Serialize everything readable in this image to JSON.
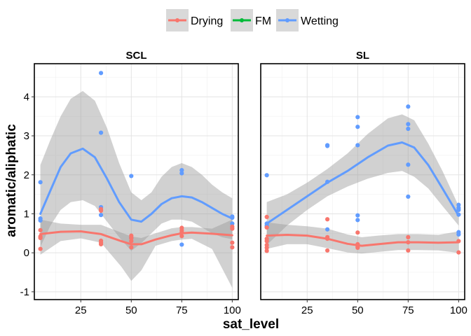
{
  "chart_data": {
    "type": "scatter",
    "legend": {
      "position": "top",
      "entries": [
        {
          "name": "Drying",
          "color": "#F8766D"
        },
        {
          "name": "FM",
          "color": "#00BA38"
        },
        {
          "name": "Wetting",
          "color": "#619CFF"
        }
      ]
    },
    "xlabel": "sat_level",
    "ylabel": "aromatic/aliphatic",
    "xlim": [
      2,
      103
    ],
    "ylim": [
      -1.2,
      4.85
    ],
    "yticks": [
      -1,
      0,
      1,
      2,
      3,
      4
    ],
    "grid": true,
    "panels": [
      {
        "title": "SCL",
        "xticks": [
          25,
          50,
          75,
          100
        ],
        "series": [
          {
            "name": "Wetting",
            "points": [
              [
                5,
                1.81
              ],
              [
                5,
                0.88
              ],
              [
                5,
                0.83
              ],
              [
                35,
                4.61
              ],
              [
                35,
                3.08
              ],
              [
                35,
                1.17
              ],
              [
                35,
                0.97
              ],
              [
                50,
                1.97
              ],
              [
                50,
                0.38
              ],
              [
                75,
                2.12
              ],
              [
                75,
                2.04
              ],
              [
                75,
                0.21
              ],
              [
                100,
                0.93
              ],
              [
                100,
                0.9
              ],
              [
                100,
                0.75
              ]
            ],
            "smooth": [
              [
                5,
                1.0
              ],
              [
                10,
                1.6
              ],
              [
                15,
                2.2
              ],
              [
                20,
                2.55
              ],
              [
                26,
                2.67
              ],
              [
                32,
                2.45
              ],
              [
                38,
                1.9
              ],
              [
                44,
                1.3
              ],
              [
                50,
                0.85
              ],
              [
                55,
                0.8
              ],
              [
                60,
                1.0
              ],
              [
                65,
                1.25
              ],
              [
                70,
                1.4
              ],
              [
                75,
                1.45
              ],
              [
                80,
                1.42
              ],
              [
                85,
                1.3
              ],
              [
                90,
                1.15
              ],
              [
                95,
                1.0
              ],
              [
                100,
                0.88
              ]
            ],
            "band_upper": [
              [
                5,
                2.25
              ],
              [
                10,
                2.9
              ],
              [
                15,
                3.5
              ],
              [
                20,
                3.95
              ],
              [
                26,
                4.15
              ],
              [
                32,
                3.9
              ],
              [
                38,
                3.2
              ],
              [
                44,
                2.3
              ],
              [
                50,
                1.55
              ],
              [
                55,
                1.35
              ],
              [
                60,
                1.55
              ],
              [
                65,
                1.95
              ],
              [
                70,
                2.2
              ],
              [
                75,
                2.3
              ],
              [
                80,
                2.2
              ],
              [
                85,
                2.0
              ],
              [
                90,
                1.75
              ],
              [
                95,
                1.55
              ],
              [
                100,
                1.4
              ]
            ],
            "band_lower": [
              [
                5,
                0.15
              ],
              [
                10,
                0.7
              ],
              [
                15,
                1.1
              ],
              [
                20,
                1.3
              ],
              [
                26,
                1.35
              ],
              [
                32,
                1.2
              ],
              [
                38,
                0.8
              ],
              [
                44,
                0.4
              ],
              [
                50,
                0.05
              ],
              [
                55,
                0.25
              ],
              [
                60,
                0.5
              ],
              [
                65,
                0.75
              ],
              [
                70,
                0.85
              ],
              [
                75,
                0.85
              ],
              [
                80,
                0.8
              ],
              [
                85,
                0.65
              ],
              [
                90,
                0.5
              ],
              [
                95,
                0.4
              ],
              [
                100,
                0.35
              ]
            ]
          },
          {
            "name": "Drying",
            "points": [
              [
                5,
                0.58
              ],
              [
                5,
                0.42
              ],
              [
                5,
                0.38
              ],
              [
                5,
                0.1
              ],
              [
                35,
                1.12
              ],
              [
                35,
                1.08
              ],
              [
                35,
                0.31
              ],
              [
                35,
                0.26
              ],
              [
                35,
                0.22
              ],
              [
                50,
                0.44
              ],
              [
                50,
                0.4
              ],
              [
                50,
                0.37
              ],
              [
                50,
                0.3
              ],
              [
                50,
                0.14
              ],
              [
                75,
                0.64
              ],
              [
                75,
                0.58
              ],
              [
                75,
                0.53
              ],
              [
                75,
                0.43
              ],
              [
                100,
                0.67
              ],
              [
                100,
                0.62
              ],
              [
                100,
                0.26
              ],
              [
                100,
                0.14
              ]
            ],
            "smooth": [
              [
                5,
                0.48
              ],
              [
                15,
                0.54
              ],
              [
                25,
                0.55
              ],
              [
                35,
                0.48
              ],
              [
                45,
                0.3
              ],
              [
                50,
                0.22
              ],
              [
                55,
                0.22
              ],
              [
                62,
                0.34
              ],
              [
                70,
                0.45
              ],
              [
                75,
                0.5
              ],
              [
                80,
                0.52
              ],
              [
                90,
                0.49
              ],
              [
                100,
                0.45
              ]
            ],
            "band_upper": [
              [
                5,
                0.85
              ],
              [
                15,
                0.75
              ],
              [
                25,
                0.72
              ],
              [
                35,
                0.72
              ],
              [
                45,
                0.52
              ],
              [
                50,
                0.42
              ],
              [
                55,
                0.38
              ],
              [
                62,
                0.5
              ],
              [
                70,
                0.63
              ],
              [
                75,
                0.66
              ],
              [
                80,
                0.66
              ],
              [
                90,
                0.62
              ],
              [
                100,
                0.85
              ]
            ],
            "band_lower": [
              [
                5,
                -0.05
              ],
              [
                15,
                0.3
              ],
              [
                25,
                0.37
              ],
              [
                35,
                0.26
              ],
              [
                45,
                -0.35
              ],
              [
                50,
                -0.72
              ],
              [
                55,
                -0.45
              ],
              [
                62,
                0.18
              ],
              [
                70,
                0.3
              ],
              [
                75,
                0.34
              ],
              [
                80,
                0.36
              ],
              [
                90,
                0.1
              ],
              [
                100,
                -0.9
              ]
            ]
          }
        ]
      },
      {
        "title": "SL",
        "xticks": [
          25,
          50,
          75,
          100
        ],
        "series": [
          {
            "name": "Wetting",
            "points": [
              [
                5,
                1.99
              ],
              [
                5,
                0.75
              ],
              [
                5,
                0.7
              ],
              [
                5,
                0.67
              ],
              [
                35,
                2.76
              ],
              [
                35,
                2.74
              ],
              [
                35,
                1.82
              ],
              [
                35,
                0.6
              ],
              [
                50,
                3.48
              ],
              [
                50,
                3.23
              ],
              [
                50,
                2.76
              ],
              [
                50,
                0.96
              ],
              [
                50,
                0.84
              ],
              [
                75,
                3.75
              ],
              [
                75,
                3.3
              ],
              [
                75,
                3.18
              ],
              [
                75,
                2.26
              ],
              [
                75,
                1.44
              ],
              [
                100,
                1.23
              ],
              [
                100,
                1.15
              ],
              [
                100,
                1.1
              ],
              [
                100,
                0.98
              ],
              [
                100,
                0.53
              ],
              [
                100,
                0.47
              ]
            ],
            "smooth": [
              [
                5,
                0.75
              ],
              [
                15,
                1.1
              ],
              [
                25,
                1.45
              ],
              [
                35,
                1.8
              ],
              [
                45,
                2.1
              ],
              [
                55,
                2.45
              ],
              [
                65,
                2.75
              ],
              [
                72,
                2.83
              ],
              [
                78,
                2.7
              ],
              [
                85,
                2.25
              ],
              [
                92,
                1.65
              ],
              [
                100,
                0.95
              ]
            ],
            "band_upper": [
              [
                5,
                1.3
              ],
              [
                15,
                1.5
              ],
              [
                25,
                1.8
              ],
              [
                35,
                2.15
              ],
              [
                45,
                2.55
              ],
              [
                55,
                3.05
              ],
              [
                65,
                3.45
              ],
              [
                72,
                3.55
              ],
              [
                78,
                3.4
              ],
              [
                85,
                2.8
              ],
              [
                92,
                2.1
              ],
              [
                100,
                1.2
              ]
            ],
            "band_lower": [
              [
                5,
                0.2
              ],
              [
                15,
                0.7
              ],
              [
                25,
                1.1
              ],
              [
                35,
                1.45
              ],
              [
                45,
                1.7
              ],
              [
                55,
                1.9
              ],
              [
                65,
                2.05
              ],
              [
                72,
                2.1
              ],
              [
                78,
                1.95
              ],
              [
                85,
                1.65
              ],
              [
                92,
                1.2
              ],
              [
                100,
                0.7
              ]
            ]
          },
          {
            "name": "Drying",
            "points": [
              [
                5,
                0.92
              ],
              [
                5,
                0.65
              ],
              [
                5,
                0.36
              ],
              [
                5,
                0.3
              ],
              [
                5,
                0.2
              ],
              [
                5,
                0.13
              ],
              [
                5,
                0.05
              ],
              [
                35,
                0.86
              ],
              [
                35,
                0.4
              ],
              [
                35,
                0.36
              ],
              [
                35,
                0.06
              ],
              [
                50,
                0.52
              ],
              [
                50,
                0.22
              ],
              [
                50,
                0.16
              ],
              [
                50,
                0.13
              ],
              [
                75,
                0.4
              ],
              [
                75,
                0.27
              ],
              [
                75,
                0.06
              ],
              [
                100,
                0.3
              ],
              [
                100,
                0.01
              ]
            ],
            "smooth": [
              [
                5,
                0.44
              ],
              [
                15,
                0.46
              ],
              [
                25,
                0.44
              ],
              [
                35,
                0.36
              ],
              [
                45,
                0.23
              ],
              [
                52,
                0.18
              ],
              [
                60,
                0.22
              ],
              [
                70,
                0.27
              ],
              [
                80,
                0.27
              ],
              [
                90,
                0.26
              ],
              [
                100,
                0.27
              ]
            ],
            "band_upper": [
              [
                5,
                0.78
              ],
              [
                15,
                0.72
              ],
              [
                25,
                0.68
              ],
              [
                35,
                0.62
              ],
              [
                45,
                0.47
              ],
              [
                52,
                0.4
              ],
              [
                60,
                0.44
              ],
              [
                70,
                0.48
              ],
              [
                80,
                0.48
              ],
              [
                90,
                0.46
              ],
              [
                100,
                0.55
              ]
            ],
            "band_lower": [
              [
                5,
                0.1
              ],
              [
                15,
                0.22
              ],
              [
                25,
                0.22
              ],
              [
                35,
                0.12
              ],
              [
                45,
                0.01
              ],
              [
                52,
                -0.02
              ],
              [
                60,
                0.02
              ],
              [
                70,
                0.07
              ],
              [
                80,
                0.07
              ],
              [
                90,
                0.06
              ],
              [
                100,
                0.0
              ]
            ]
          }
        ]
      }
    ]
  }
}
